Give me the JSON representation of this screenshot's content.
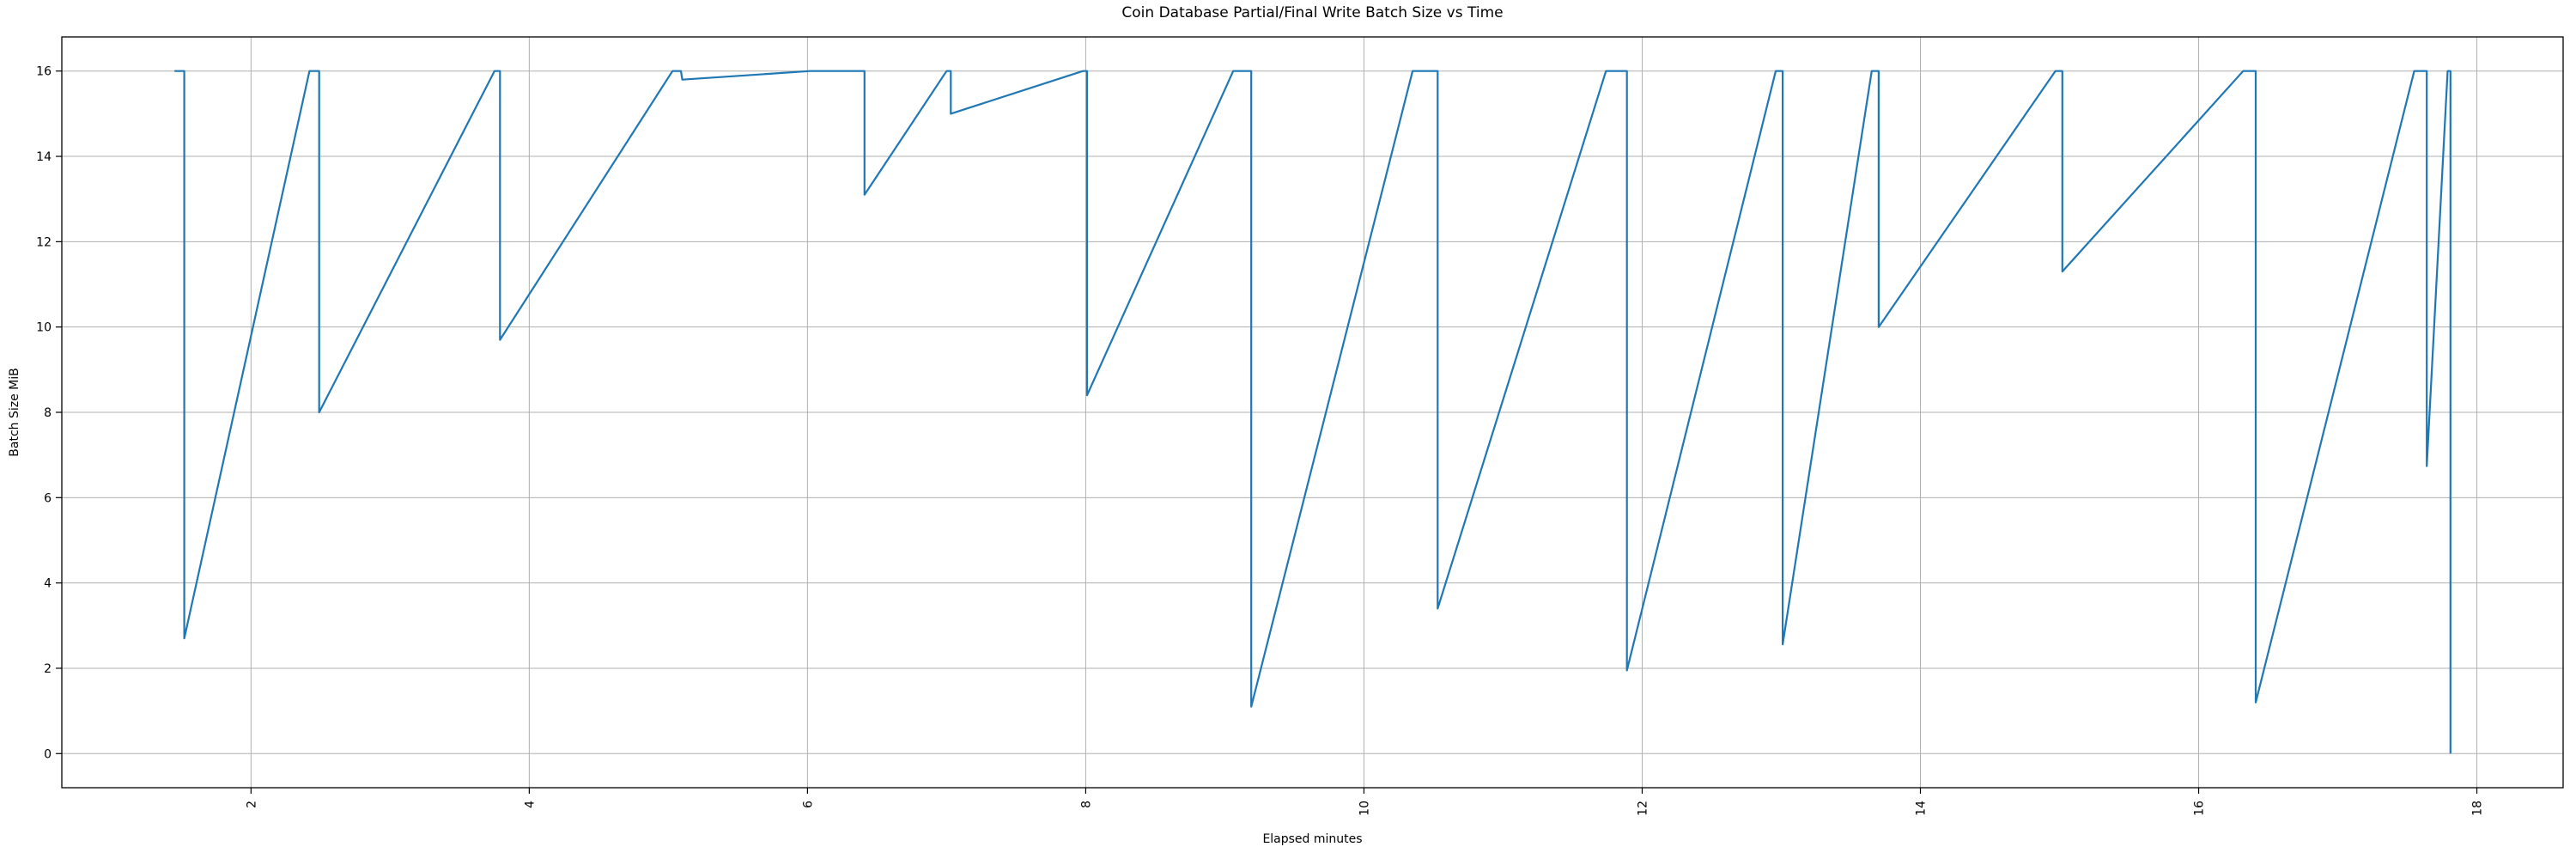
{
  "chart_data": {
    "type": "line",
    "title": "Coin Database Partial/Final Write Batch Size vs Time",
    "xlabel": "Elapsed minutes",
    "ylabel": "Batch Size MiB",
    "xlim": [
      0.64,
      18.62
    ],
    "ylim": [
      -0.8,
      16.8
    ],
    "xticks": [
      2,
      4,
      6,
      8,
      10,
      12,
      14,
      16,
      18
    ],
    "yticks": [
      0,
      2,
      4,
      6,
      8,
      10,
      12,
      14,
      16
    ],
    "grid": true,
    "legend_position": "none",
    "line_color": "#1f77b4",
    "grid_color": "#b0b0b0",
    "spine_color": "#000000",
    "background_color": "#ffffff",
    "series": [
      {
        "name": "batch-size",
        "x": [
          1.45,
          1.52,
          1.52,
          2.42,
          2.49,
          2.49,
          3.75,
          3.79,
          3.79,
          5.03,
          5.09,
          5.1,
          6.02,
          6.41,
          6.41,
          7.0,
          7.03,
          7.03,
          7.98,
          8.01,
          8.01,
          9.06,
          9.19,
          9.19,
          10.35,
          10.53,
          10.53,
          11.74,
          11.89,
          11.89,
          12.96,
          13.01,
          13.01,
          13.65,
          13.7,
          13.7,
          14.97,
          15.02,
          15.02,
          16.32,
          16.41,
          16.41,
          17.55,
          17.64,
          17.64,
          17.79,
          17.81,
          17.81
        ],
        "y": [
          16,
          16,
          2.7,
          16,
          16,
          8.0,
          16,
          16,
          9.7,
          16,
          16,
          15.8,
          16,
          16,
          13.1,
          16,
          16,
          15.0,
          16,
          16,
          8.4,
          16,
          16,
          1.1,
          16,
          16,
          3.4,
          16,
          16,
          1.95,
          16,
          16,
          2.56,
          16,
          16,
          10.0,
          16,
          16,
          11.3,
          16,
          16,
          1.2,
          16,
          16,
          6.74,
          16,
          16,
          0.0
        ]
      }
    ]
  }
}
